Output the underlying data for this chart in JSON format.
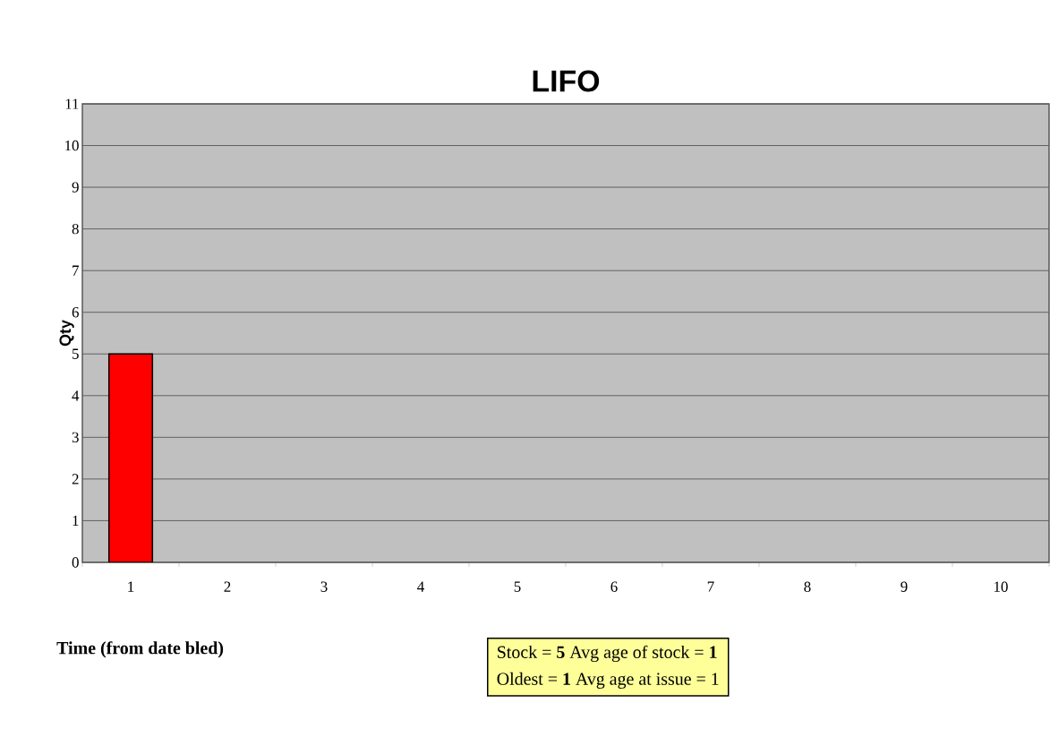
{
  "chart_data": {
    "type": "bar",
    "title": "LIFO",
    "xlabel": "Time (from date bled)",
    "ylabel": "Qty",
    "categories": [
      "1",
      "2",
      "3",
      "4",
      "5",
      "6",
      "7",
      "8",
      "9",
      "10"
    ],
    "values": [
      5,
      null,
      null,
      null,
      null,
      null,
      null,
      null,
      null,
      null
    ],
    "color": "#ff0000",
    "ylim": [
      0,
      11
    ],
    "yticks": [
      0,
      1,
      2,
      3,
      4,
      5,
      6,
      7,
      8,
      9,
      10,
      11
    ],
    "grid": "y",
    "annotations": [
      "Stock = **5**      Avg age of stock = **1**",
      "Oldest  = **1**   Avg age at issue = 1"
    ]
  }
}
